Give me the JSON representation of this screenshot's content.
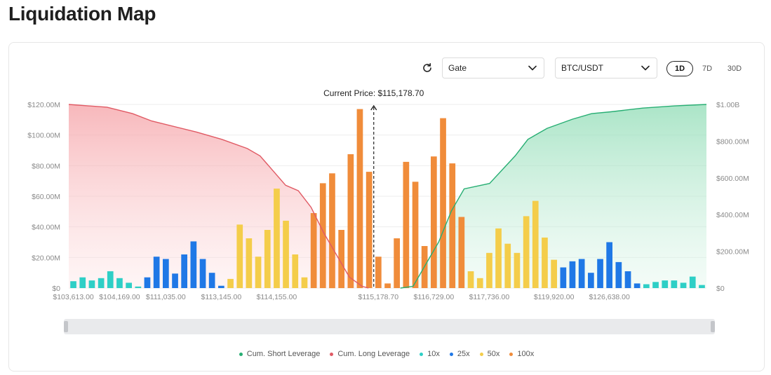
{
  "page": {
    "title": "Liquidation Map"
  },
  "toolbar": {
    "exchange": "Gate",
    "pair": "BTC/USDT",
    "timeframes": [
      "1D",
      "7D",
      "30D"
    ],
    "active_timeframe": "1D",
    "refresh_icon": "refresh-icon",
    "dropdown_icon": "chevron-down-icon"
  },
  "colors": {
    "short": "#27ae73",
    "long": "#e05a64",
    "10x": "#2ecfc6",
    "25x": "#1f78e6",
    "50x": "#f4cd4a",
    "100x": "#f08c3a"
  },
  "chart_data": {
    "type": "bar",
    "current_price_label": "Current Price: $115,178.70",
    "current_price_index": 33,
    "x_tick_labels": [
      "$103,613.00",
      "$104,169.00",
      "$111,035.00",
      "$113,145.00",
      "$114,155.00",
      "$115,178.70",
      "$116,729.00",
      "$117,736.00",
      "$119,920.00",
      "$126,638.00"
    ],
    "x_tick_indices": [
      0,
      5,
      10,
      16,
      22,
      33,
      39,
      45,
      52,
      58
    ],
    "y_left": {
      "ticks": [
        "$0",
        "$20.00M",
        "$40.00M",
        "$60.00M",
        "$80.00M",
        "$100.00M",
        "$120.00M"
      ],
      "min": 0,
      "max": 120
    },
    "y_right": {
      "ticks": [
        "$0",
        "$200.00M",
        "$400.00M",
        "$600.00M",
        "$800.00M",
        "$1.00B"
      ],
      "min": 0,
      "max": 1000
    },
    "bars": [
      {
        "v": 4.5,
        "lev": "10x"
      },
      {
        "v": 7,
        "lev": "10x"
      },
      {
        "v": 5,
        "lev": "10x"
      },
      {
        "v": 6.5,
        "lev": "10x"
      },
      {
        "v": 11,
        "lev": "10x"
      },
      {
        "v": 6.5,
        "lev": "10x"
      },
      {
        "v": 3.5,
        "lev": "10x"
      },
      {
        "v": 1,
        "lev": "10x"
      },
      {
        "v": 7,
        "lev": "25x"
      },
      {
        "v": 20.5,
        "lev": "25x"
      },
      {
        "v": 19,
        "lev": "25x"
      },
      {
        "v": 9.5,
        "lev": "25x"
      },
      {
        "v": 22,
        "lev": "25x"
      },
      {
        "v": 30.5,
        "lev": "25x"
      },
      {
        "v": 19,
        "lev": "25x"
      },
      {
        "v": 10,
        "lev": "25x"
      },
      {
        "v": 1.5,
        "lev": "25x"
      },
      {
        "v": 6,
        "lev": "50x"
      },
      {
        "v": 41.5,
        "lev": "50x"
      },
      {
        "v": 32.5,
        "lev": "50x"
      },
      {
        "v": 20.5,
        "lev": "50x"
      },
      {
        "v": 38,
        "lev": "50x"
      },
      {
        "v": 65,
        "lev": "50x"
      },
      {
        "v": 44,
        "lev": "50x"
      },
      {
        "v": 22,
        "lev": "50x"
      },
      {
        "v": 7,
        "lev": "50x"
      },
      {
        "v": 49,
        "lev": "100x"
      },
      {
        "v": 68.5,
        "lev": "100x"
      },
      {
        "v": 75,
        "lev": "100x"
      },
      {
        "v": 38,
        "lev": "100x"
      },
      {
        "v": 87.5,
        "lev": "100x"
      },
      {
        "v": 117,
        "lev": "100x"
      },
      {
        "v": 76,
        "lev": "100x"
      },
      {
        "v": 20.5,
        "lev": "100x"
      },
      {
        "v": 3,
        "lev": "100x"
      },
      {
        "v": 32.5,
        "lev": "100x"
      },
      {
        "v": 82.5,
        "lev": "100x"
      },
      {
        "v": 69.5,
        "lev": "100x"
      },
      {
        "v": 27.5,
        "lev": "100x"
      },
      {
        "v": 86,
        "lev": "100x"
      },
      {
        "v": 111,
        "lev": "100x"
      },
      {
        "v": 81.5,
        "lev": "100x"
      },
      {
        "v": 46.5,
        "lev": "100x"
      },
      {
        "v": 11,
        "lev": "50x"
      },
      {
        "v": 6.5,
        "lev": "50x"
      },
      {
        "v": 23,
        "lev": "50x"
      },
      {
        "v": 39,
        "lev": "50x"
      },
      {
        "v": 29,
        "lev": "50x"
      },
      {
        "v": 23,
        "lev": "50x"
      },
      {
        "v": 47,
        "lev": "50x"
      },
      {
        "v": 57,
        "lev": "50x"
      },
      {
        "v": 33,
        "lev": "50x"
      },
      {
        "v": 18.5,
        "lev": "50x"
      },
      {
        "v": 13.5,
        "lev": "25x"
      },
      {
        "v": 17.5,
        "lev": "25x"
      },
      {
        "v": 19,
        "lev": "25x"
      },
      {
        "v": 10,
        "lev": "25x"
      },
      {
        "v": 19,
        "lev": "25x"
      },
      {
        "v": 30,
        "lev": "25x"
      },
      {
        "v": 17,
        "lev": "25x"
      },
      {
        "v": 11,
        "lev": "25x"
      },
      {
        "v": 3,
        "lev": "25x"
      },
      {
        "v": 2.5,
        "lev": "10x"
      },
      {
        "v": 4,
        "lev": "10x"
      },
      {
        "v": 5,
        "lev": "10x"
      },
      {
        "v": 5,
        "lev": "10x"
      },
      {
        "v": 3.5,
        "lev": "10x"
      },
      {
        "v": 7.5,
        "lev": "10x"
      },
      {
        "v": 2,
        "lev": "10x"
      }
    ],
    "cum_long": [
      [
        0,
        1000
      ],
      [
        0.06,
        985
      ],
      [
        0.1,
        950
      ],
      [
        0.13,
        910
      ],
      [
        0.2,
        850
      ],
      [
        0.24,
        810
      ],
      [
        0.28,
        760
      ],
      [
        0.3,
        720
      ],
      [
        0.32,
        640
      ],
      [
        0.34,
        560
      ],
      [
        0.36,
        530
      ],
      [
        0.38,
        440
      ],
      [
        0.4,
        300
      ],
      [
        0.42,
        180
      ],
      [
        0.44,
        60
      ],
      [
        0.46,
        10
      ],
      [
        0.47,
        0
      ]
    ],
    "cum_short": [
      [
        0.52,
        0
      ],
      [
        0.54,
        10
      ],
      [
        0.56,
        130
      ],
      [
        0.58,
        250
      ],
      [
        0.6,
        420
      ],
      [
        0.62,
        540
      ],
      [
        0.66,
        570
      ],
      [
        0.7,
        720
      ],
      [
        0.72,
        810
      ],
      [
        0.75,
        870
      ],
      [
        0.79,
        920
      ],
      [
        0.82,
        950
      ],
      [
        0.85,
        960
      ],
      [
        0.9,
        980
      ],
      [
        0.95,
        992
      ],
      [
        1,
        1000
      ]
    ],
    "legend": [
      {
        "name": "Cum. Short Leverage",
        "key": "short"
      },
      {
        "name": "Cum. Long Leverage",
        "key": "long"
      },
      {
        "name": "10x",
        "key": "10x"
      },
      {
        "name": "25x",
        "key": "25x"
      },
      {
        "name": "50x",
        "key": "50x"
      },
      {
        "name": "100x",
        "key": "100x"
      }
    ]
  }
}
